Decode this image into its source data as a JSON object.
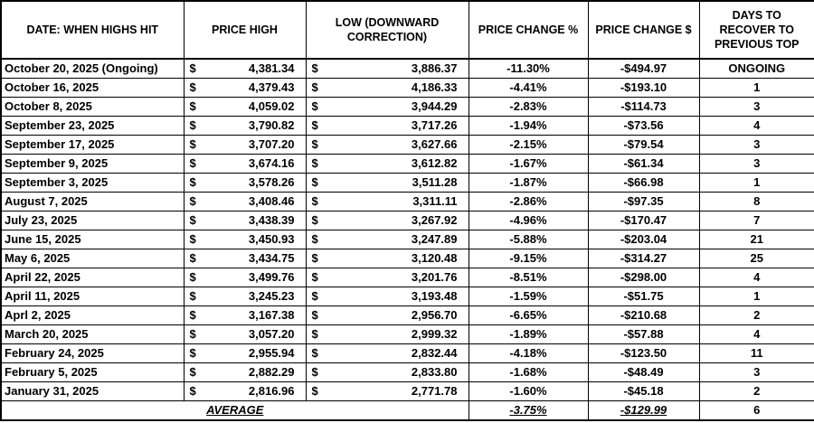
{
  "chart_data": {
    "type": "table",
    "currency_symbol": "$",
    "grid": "on",
    "columns": [
      "DATE: WHEN HIGHS HIT",
      "PRICE HIGH",
      "LOW (DOWNWARD CORRECTION)",
      "PRICE CHANGE %",
      "PRICE CHANGE $",
      "DAYS TO RECOVER TO PREVIOUS TOP"
    ],
    "rows": [
      {
        "date": "October 20, 2025 (Ongoing)",
        "high": "4,381.34",
        "low": "3,886.37",
        "pct": "-11.30%",
        "chg": "-$494.97",
        "days": "ONGOING"
      },
      {
        "date": "October 16, 2025",
        "high": "4,379.43",
        "low": "4,186.33",
        "pct": "-4.41%",
        "chg": "-$193.10",
        "days": "1"
      },
      {
        "date": "October 8, 2025",
        "high": "4,059.02",
        "low": "3,944.29",
        "pct": "-2.83%",
        "chg": "-$114.73",
        "days": "3"
      },
      {
        "date": "September 23, 2025",
        "high": "3,790.82",
        "low": "3,717.26",
        "pct": "-1.94%",
        "chg": "-$73.56",
        "days": "4"
      },
      {
        "date": "September 17, 2025",
        "high": "3,707.20",
        "low": "3,627.66",
        "pct": "-2.15%",
        "chg": "-$79.54",
        "days": "3"
      },
      {
        "date": "September 9, 2025",
        "high": "3,674.16",
        "low": "3,612.82",
        "pct": "-1.67%",
        "chg": "-$61.34",
        "days": "3"
      },
      {
        "date": "September 3, 2025",
        "high": "3,578.26",
        "low": "3,511.28",
        "pct": "-1.87%",
        "chg": "-$66.98",
        "days": "1"
      },
      {
        "date": "August 7, 2025",
        "high": "3,408.46",
        "low": "3,311.11",
        "pct": "-2.86%",
        "chg": "-$97.35",
        "days": "8"
      },
      {
        "date": "July 23, 2025",
        "high": "3,438.39",
        "low": "3,267.92",
        "pct": "-4.96%",
        "chg": "-$170.47",
        "days": "7"
      },
      {
        "date": "June 15, 2025",
        "high": "3,450.93",
        "low": "3,247.89",
        "pct": "-5.88%",
        "chg": "-$203.04",
        "days": "21"
      },
      {
        "date": "May 6, 2025",
        "high": "3,434.75",
        "low": "3,120.48",
        "pct": "-9.15%",
        "chg": "-$314.27",
        "days": "25"
      },
      {
        "date": "April 22, 2025",
        "high": "3,499.76",
        "low": "3,201.76",
        "pct": "-8.51%",
        "chg": "-$298.00",
        "days": "4"
      },
      {
        "date": "April 11, 2025",
        "high": "3,245.23",
        "low": "3,193.48",
        "pct": "-1.59%",
        "chg": "-$51.75",
        "days": "1"
      },
      {
        "date": "Aprl 2, 2025",
        "high": "3,167.38",
        "low": "2,956.70",
        "pct": "-6.65%",
        "chg": "-$210.68",
        "days": "2"
      },
      {
        "date": "March 20, 2025",
        "high": "3,057.20",
        "low": "2,999.32",
        "pct": "-1.89%",
        "chg": "-$57.88",
        "days": "4"
      },
      {
        "date": "February 24, 2025",
        "high": "2,955.94",
        "low": "2,832.44",
        "pct": "-4.18%",
        "chg": "-$123.50",
        "days": "11"
      },
      {
        "date": "February 5, 2025",
        "high": "2,882.29",
        "low": "2,833.80",
        "pct": "-1.68%",
        "chg": "-$48.49",
        "days": "3"
      },
      {
        "date": "January 31, 2025",
        "high": "2,816.96",
        "low": "2,771.78",
        "pct": "-1.60%",
        "chg": "-$45.18",
        "days": "2"
      }
    ],
    "footer": {
      "label": "AVERAGE",
      "pct": "-3.75%",
      "chg": "-$129.99",
      "days": "6"
    }
  }
}
